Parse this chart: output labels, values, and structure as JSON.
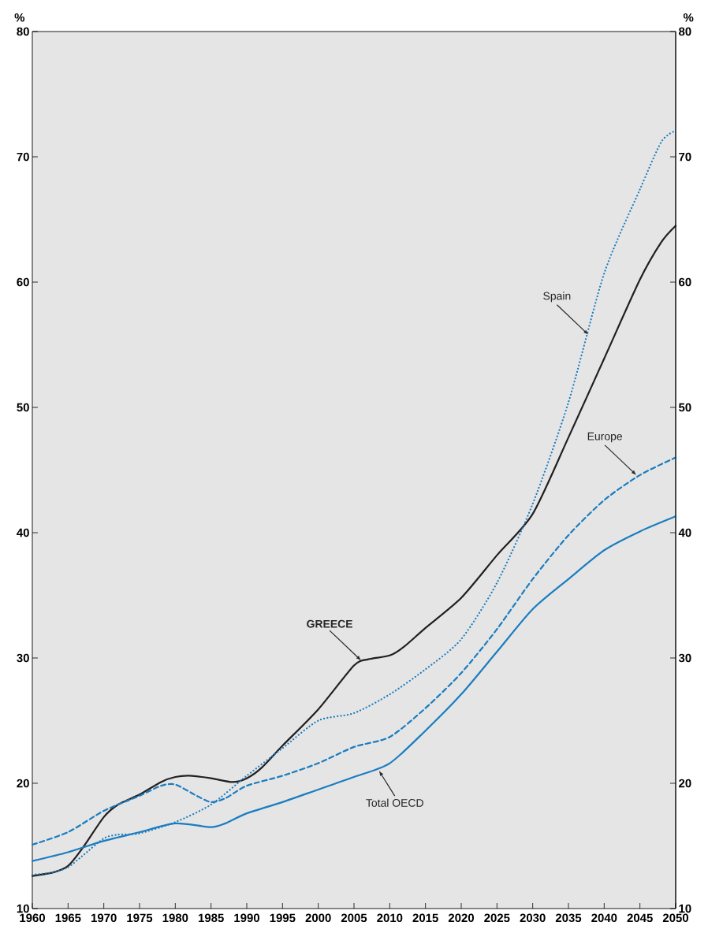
{
  "chart_data": {
    "type": "line",
    "ylabel": "%",
    "y2label": "%",
    "xlim": [
      1960,
      2050
    ],
    "xticks": [
      1960,
      1965,
      1970,
      1975,
      1980,
      1985,
      1990,
      1995,
      2000,
      2005,
      2010,
      2015,
      2020,
      2025,
      2030,
      2035,
      2040,
      2045,
      2050
    ],
    "ylim": [
      10,
      80
    ],
    "yticks": [
      10,
      20,
      30,
      40,
      50,
      60,
      70,
      80
    ],
    "y2lim": [
      10,
      80
    ],
    "y2ticks": [
      10,
      20,
      30,
      40,
      50,
      60,
      70,
      80
    ],
    "series": [
      {
        "color": "#231f20",
        "line_style": "solid",
        "x": [
          1960,
          1963,
          1965,
          1967,
          1970,
          1972,
          1975,
          1978,
          1980,
          1982,
          1985,
          1988,
          1990,
          1992,
          1995,
          2000,
          2005,
          2007,
          2010,
          2012,
          2015,
          2020,
          2025,
          2030,
          2035,
          2040,
          2045,
          2048,
          2050
        ],
        "values": [
          12.6,
          12.9,
          13.4,
          14.8,
          17.3,
          18.3,
          19.1,
          20.1,
          20.5,
          20.6,
          20.4,
          20.1,
          20.4,
          21.2,
          23.0,
          25.9,
          29.4,
          29.9,
          30.2,
          30.9,
          32.4,
          34.8,
          38.2,
          41.5,
          47.6,
          53.9,
          60.2,
          63.2,
          64.5
        ]
      },
      {
        "color": "#1a7dc0",
        "line_style": "dotted",
        "x": [
          1960,
          1963,
          1965,
          1967,
          1970,
          1972,
          1975,
          1980,
          1985,
          1990,
          1995,
          2000,
          2005,
          2010,
          2015,
          2020,
          2025,
          2030,
          2035,
          2040,
          2045,
          2048,
          2050
        ],
        "values": [
          12.7,
          12.9,
          13.3,
          14.2,
          15.6,
          15.9,
          16.0,
          16.9,
          18.3,
          20.6,
          22.8,
          25.0,
          25.6,
          27.1,
          29.1,
          31.5,
          36.0,
          42.3,
          50.4,
          60.7,
          67.4,
          71.2,
          72.1
        ]
      },
      {
        "color": "#1a7dc0",
        "line_style": "dashed",
        "x": [
          1960,
          1965,
          1970,
          1975,
          1978,
          1980,
          1983,
          1985,
          1987,
          1990,
          1995,
          2000,
          2005,
          2010,
          2015,
          2020,
          2025,
          2030,
          2035,
          2040,
          2045,
          2050
        ],
        "values": [
          15.1,
          16.1,
          17.8,
          19.0,
          19.8,
          19.9,
          19.0,
          18.5,
          18.8,
          19.8,
          20.6,
          21.6,
          22.9,
          23.7,
          26.0,
          28.8,
          32.3,
          36.3,
          39.8,
          42.6,
          44.6,
          46.0
        ]
      },
      {
        "color": "#1a7dc0",
        "line_style": "solid",
        "x": [
          1960,
          1965,
          1970,
          1975,
          1980,
          1985,
          1987,
          1990,
          1995,
          2000,
          2005,
          2010,
          2015,
          2020,
          2025,
          2030,
          2035,
          2040,
          2045,
          2050
        ],
        "values": [
          13.8,
          14.5,
          15.4,
          16.1,
          16.8,
          16.5,
          16.8,
          17.6,
          18.5,
          19.5,
          20.5,
          21.6,
          24.2,
          27.1,
          30.5,
          33.9,
          36.3,
          38.6,
          40.1,
          41.3
        ]
      }
    ],
    "annotations": [
      {
        "text": "GREECE",
        "x": 2006,
        "y": 29.8
      },
      {
        "text": "Spain",
        "x": 2037.8,
        "y": 55.8
      },
      {
        "text": "Europe",
        "x": 2044.5,
        "y": 44.6
      },
      {
        "text": "Total OECD",
        "x": 2008.5,
        "y": 21.0
      }
    ]
  }
}
